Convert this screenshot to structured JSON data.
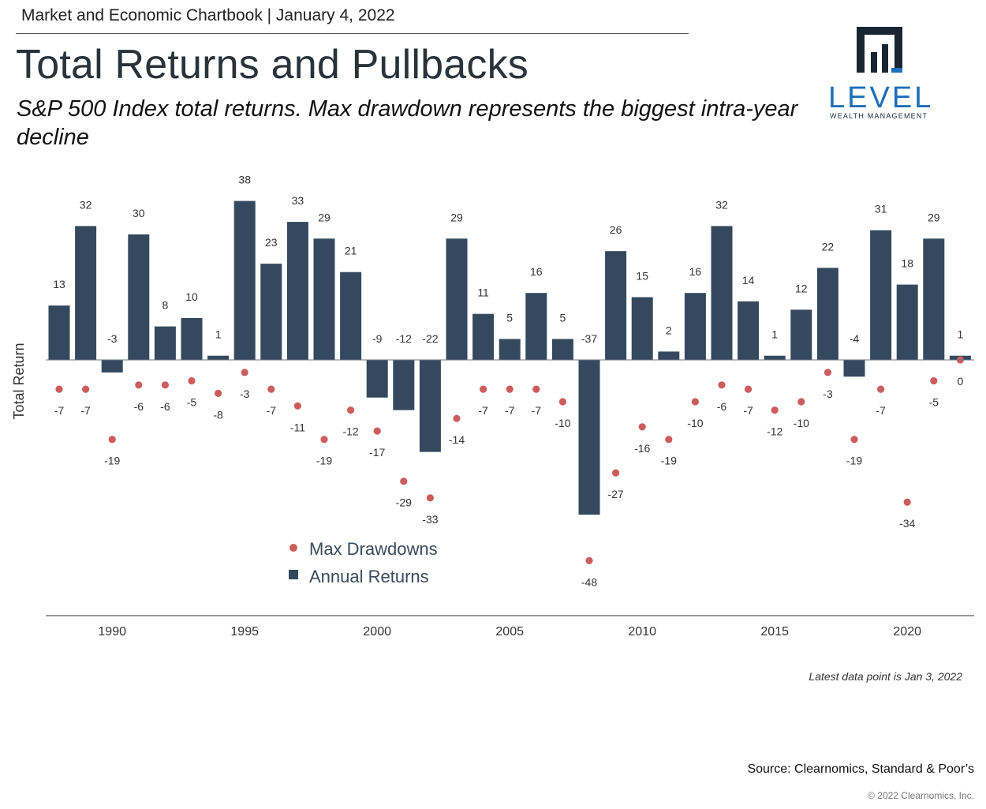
{
  "header": {
    "text": "Market and Economic Chartbook | January 4, 2022"
  },
  "title": "Total Returns and Pullbacks",
  "subtitle": "S&P 500 Index total returns. Max drawdown represents the biggest intra-year decline",
  "logo": {
    "name": "LEVEL",
    "tagline": "WEALTH MANAGEMENT",
    "icon": "level-logo-icon",
    "color": "#1c6fb8",
    "mark_color": "#1a2533"
  },
  "chart_data": {
    "type": "bar",
    "title": "Total Returns and Pullbacks",
    "xlabel": "",
    "ylabel": "Total Return",
    "x": [
      1988,
      1989,
      1990,
      1991,
      1992,
      1993,
      1994,
      1995,
      1996,
      1997,
      1998,
      1999,
      2000,
      2001,
      2002,
      2003,
      2004,
      2005,
      2006,
      2007,
      2008,
      2009,
      2010,
      2011,
      2012,
      2013,
      2014,
      2015,
      2016,
      2017,
      2018,
      2019,
      2020,
      2021,
      2022
    ],
    "x_ticks": [
      1990,
      1995,
      2000,
      2005,
      2010,
      2015,
      2020
    ],
    "series": [
      {
        "name": "Annual Returns",
        "kind": "bar",
        "color": "#34495e",
        "values": [
          13,
          32,
          -3,
          30,
          8,
          10,
          1,
          38,
          23,
          33,
          29,
          21,
          -9,
          -12,
          -22,
          29,
          11,
          5,
          16,
          5,
          -37,
          26,
          15,
          2,
          16,
          32,
          14,
          1,
          12,
          22,
          -4,
          31,
          18,
          29,
          1
        ],
        "labels": [
          "13",
          "32",
          "-3",
          "30",
          "8",
          "10",
          "1",
          "38",
          "23",
          "33",
          "29",
          "21",
          "-9",
          "-12",
          "-22",
          "29",
          "11",
          "5",
          "16",
          "5",
          "-37",
          "26",
          "15",
          "2",
          "16",
          "32",
          "14",
          "1",
          "12",
          "22",
          "-4",
          "31",
          "18",
          "29",
          "1"
        ]
      },
      {
        "name": "Max Drawdowns",
        "kind": "scatter",
        "color": "#cd5c5c",
        "values": [
          -7,
          -7,
          -19,
          -6,
          -6,
          -5,
          -8,
          -3,
          -7,
          -11,
          -19,
          -12,
          -17,
          -29,
          -33,
          -14,
          -7,
          -7,
          -7,
          -10,
          -48,
          -27,
          -16,
          -19,
          -10,
          -6,
          -7,
          -12,
          -10,
          -3,
          -19,
          -7,
          -34,
          -5,
          0
        ],
        "labels": [
          "-7",
          "-7",
          "-19",
          "-6",
          "-6",
          "-5",
          "-8",
          "-3",
          "-7",
          "-11",
          "-19",
          "-12",
          "-17",
          "-29",
          "-33",
          "-14",
          "-7",
          "-7",
          "-7",
          "-10",
          "-48",
          "-27",
          "-16",
          "-19",
          "-10",
          "-6",
          "-7",
          "-12",
          "-10",
          "-3",
          "-19",
          "-7",
          "-34",
          "-5",
          "0"
        ]
      }
    ],
    "ylim": [
      -60,
      44
    ],
    "grid": false,
    "legend": {
      "placement": "center-bottom",
      "entries": [
        "Max Drawdowns",
        "Annual Returns"
      ]
    },
    "annotations": [
      "Latest data point is Jan 3, 2022"
    ]
  },
  "footer": {
    "note": "Latest data point is Jan 3, 2022",
    "source": "Source: Clearnomics, Standard & Poor’s",
    "copyright": "© 2022 Clearnomics, Inc."
  }
}
